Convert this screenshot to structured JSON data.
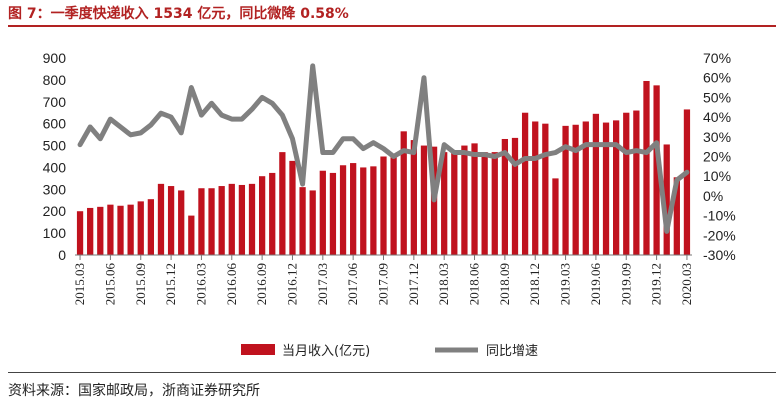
{
  "header": {
    "title": "图 7：一季度快递收入 1534 亿元，同比微降 0.58%"
  },
  "footer": {
    "source": "资料来源：国家邮政局，浙商证券研究所"
  },
  "colors": {
    "title": "#b22222",
    "bar": "#c0121e",
    "line": "#808080"
  },
  "chart_data": {
    "type": "bar+line",
    "title": "图 7：一季度快递收入 1534 亿元，同比微降 0.58%",
    "x_tick_labels": [
      "2015.03",
      "2015.06",
      "2015.09",
      "2015.12",
      "2016.03",
      "2016.06",
      "2016.09",
      "2016.12",
      "2017.03",
      "2017.06",
      "2017.09",
      "2017.12",
      "2018.03",
      "2018.06",
      "2018.09",
      "2018.12",
      "2019.03",
      "2019.06",
      "2019.09",
      "2019.12",
      "2020.03"
    ],
    "y_left": {
      "ticks": [
        "0",
        "100",
        "200",
        "300",
        "400",
        "500",
        "600",
        "700",
        "800",
        "900"
      ],
      "ylim": [
        0,
        900
      ]
    },
    "y_right": {
      "ticks": [
        "-30%",
        "-20%",
        "-10%",
        "0%",
        "10%",
        "20%",
        "30%",
        "40%",
        "50%",
        "60%",
        "70%"
      ],
      "ylim": [
        -30,
        70
      ]
    },
    "legend": {
      "placement": "bottom"
    },
    "series": [
      {
        "name": "当月收入(亿元)",
        "type": "bar",
        "axis": "left",
        "values": [
          200,
          215,
          220,
          230,
          225,
          230,
          245,
          255,
          325,
          315,
          295,
          180,
          305,
          305,
          315,
          325,
          320,
          325,
          360,
          375,
          470,
          430,
          310,
          295,
          385,
          375,
          410,
          420,
          400,
          405,
          450,
          450,
          565,
          525,
          500,
          495,
          470,
          470,
          500,
          510,
          470,
          470,
          530,
          535,
          650,
          610,
          600,
          350,
          590,
          595,
          610,
          645,
          605,
          615,
          650,
          660,
          795,
          775,
          505,
          355,
          665
        ]
      },
      {
        "name": "同比增速",
        "type": "line",
        "axis": "right",
        "values": [
          26,
          35,
          29,
          39,
          35,
          31,
          32,
          36,
          42,
          40,
          32,
          55,
          41,
          47,
          41,
          39,
          39,
          44,
          50,
          47,
          41,
          29,
          6,
          66,
          22,
          22,
          29,
          29,
          24,
          27,
          24,
          20,
          23,
          22,
          60,
          -2,
          26,
          22,
          22,
          21,
          21,
          20,
          22,
          16,
          19,
          19,
          21,
          22,
          25,
          23,
          26,
          26,
          26,
          26,
          22,
          23,
          22,
          27,
          -18,
          8,
          12
        ]
      }
    ]
  }
}
